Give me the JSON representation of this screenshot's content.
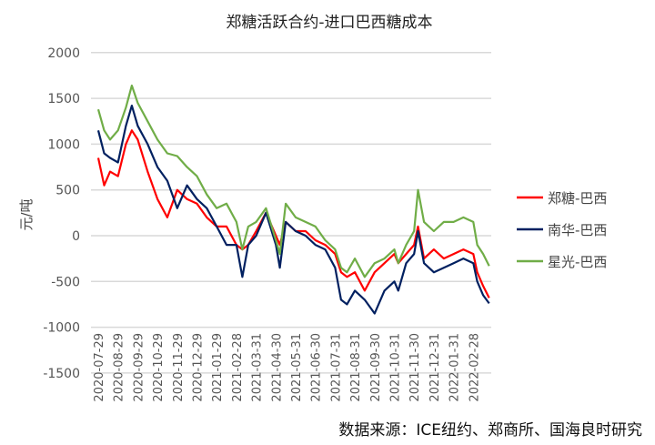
{
  "chart_data": {
    "type": "line",
    "title": "郑糖活跃合约-进口巴西糖成本",
    "ylabel": "元/吨",
    "xlabel": "",
    "ylim": [
      -1500,
      2000
    ],
    "yticks": [
      2000,
      1500,
      1000,
      500,
      0,
      -500,
      -1000,
      -1500
    ],
    "grid": true,
    "legend_position": "right",
    "xtick_labels": [
      "2020-07-29",
      "2020-08-29",
      "2020-09-29",
      "2020-10-29",
      "2020-11-29",
      "2020-12-29",
      "2021-01-29",
      "2021-02-28",
      "2021-03-31",
      "2021-04-30",
      "2021-05-31",
      "2021-06-30",
      "2021-07-31",
      "2021-08-31",
      "2021-09-30",
      "2021-10-31",
      "2021-11-30",
      "2021-12-31",
      "2022-01-31",
      "2022-02-28"
    ],
    "x_month_index": [
      0,
      0.3,
      0.6,
      1,
      1.4,
      1.7,
      2,
      2.5,
      3,
      3.5,
      4,
      4.5,
      5,
      5.5,
      6,
      6.5,
      7,
      7.3,
      7.6,
      8,
      8.5,
      9,
      9.2,
      9.5,
      10,
      10.5,
      11,
      11.5,
      12,
      12.3,
      12.6,
      13,
      13.5,
      14,
      14.5,
      15,
      15.2,
      15.6,
      16,
      16.2,
      16.5,
      17,
      17.5,
      18,
      18.5,
      19,
      19.2,
      19.5,
      19.8
    ],
    "series": [
      {
        "name": "郑糖-巴西",
        "color": "#ff0000",
        "values": [
          850,
          550,
          700,
          650,
          1000,
          1150,
          1050,
          700,
          400,
          200,
          500,
          400,
          350,
          200,
          100,
          100,
          -100,
          -150,
          -100,
          50,
          250,
          0,
          -100,
          150,
          50,
          50,
          -50,
          -100,
          -200,
          -400,
          -450,
          -400,
          -600,
          -400,
          -300,
          -200,
          -300,
          -200,
          -100,
          100,
          -250,
          -150,
          -250,
          -200,
          -150,
          -200,
          -400,
          -550,
          -680
        ]
      },
      {
        "name": "南华-巴西",
        "color": "#002060",
        "values": [
          1150,
          900,
          850,
          800,
          1200,
          1420,
          1200,
          1000,
          750,
          600,
          300,
          550,
          400,
          300,
          100,
          -100,
          -100,
          -450,
          -100,
          0,
          250,
          -100,
          -350,
          150,
          50,
          0,
          -100,
          -150,
          -350,
          -700,
          -750,
          -600,
          -700,
          -850,
          -600,
          -500,
          -600,
          -300,
          -200,
          50,
          -300,
          -400,
          -350,
          -300,
          -250,
          -300,
          -500,
          -650,
          -740
        ]
      },
      {
        "name": "星光-巴西",
        "color": "#70ad47",
        "values": [
          1380,
          1150,
          1050,
          1150,
          1400,
          1640,
          1450,
          1250,
          1050,
          900,
          870,
          750,
          650,
          450,
          300,
          350,
          150,
          -150,
          100,
          150,
          300,
          -50,
          -200,
          350,
          200,
          150,
          100,
          -50,
          -150,
          -350,
          -400,
          -250,
          -450,
          -300,
          -250,
          -150,
          -300,
          -100,
          50,
          500,
          150,
          50,
          150,
          150,
          200,
          150,
          -100,
          -200,
          -330
        ]
      }
    ]
  },
  "source": "数据来源：ICE纽约、郑商所、国海良时研究"
}
